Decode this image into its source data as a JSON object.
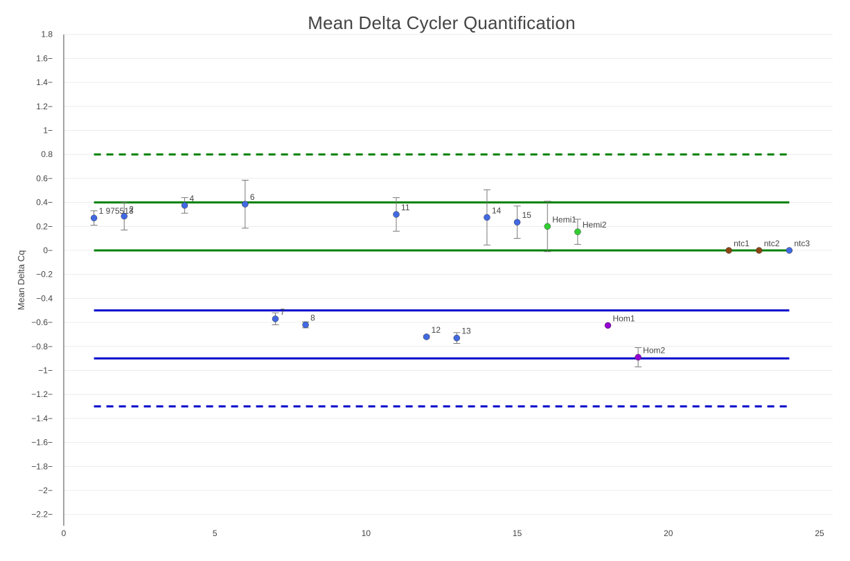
{
  "chart_data": {
    "type": "scatter",
    "title": "Mean Delta Cycler Quantification",
    "xlabel": "",
    "ylabel": "Mean Delta Cq",
    "xlim": [
      0,
      25
    ],
    "ylim": [
      -2.3,
      1.8
    ],
    "x_ticks": [
      0,
      5,
      10,
      15,
      20,
      25
    ],
    "x_tick_labels": [
      "0",
      "5",
      "10",
      "15",
      "20",
      "25"
    ],
    "y_ticks": [
      1.8,
      1.6,
      1.4,
      1.2,
      1,
      0.8,
      0.6,
      0.4,
      0.2,
      0,
      -0.2,
      -0.4,
      -0.6,
      -0.8,
      -1,
      -1.2,
      -1.4,
      -1.6,
      -1.8,
      -2,
      -2.2
    ],
    "y_tick_labels": [
      "1.8",
      "1.6−",
      "1.4−",
      "1.2−",
      "1−",
      "0.8",
      "0.6−",
      "0.4−",
      "0.2−",
      "0−",
      "−0.2",
      "−0.4",
      "−0.6−",
      "−0.8−",
      "−1−",
      "−1.2−",
      "−1.4−",
      "−1.6−",
      "−1.8−",
      "−2−",
      "−2.2−"
    ],
    "grid": true,
    "legend": false,
    "reference_lines": [
      {
        "y": 0.8,
        "color": "#008000",
        "style": "dashed"
      },
      {
        "y": 0.4,
        "color": "#008000",
        "style": "solid"
      },
      {
        "y": 0,
        "color": "#008000",
        "style": "solid"
      },
      {
        "y": -0.5,
        "color": "#0000cc",
        "style": "solid"
      },
      {
        "y": -0.9,
        "color": "#0000cc",
        "style": "solid"
      },
      {
        "y": -1.3,
        "color": "#0000cc",
        "style": "dashed"
      }
    ],
    "reference_x_range": [
      1,
      24
    ],
    "points": [
      {
        "x": 1,
        "y": 0.27,
        "err": 0.06,
        "label": "1 975513",
        "color": "#4169e1"
      },
      {
        "x": 2,
        "y": 0.285,
        "err": 0.115,
        "label": "2",
        "color": "#4169e1"
      },
      {
        "x": 4,
        "y": 0.375,
        "err": 0.065,
        "label": "4",
        "color": "#4169e1"
      },
      {
        "x": 6,
        "y": 0.385,
        "err": 0.2,
        "label": "6",
        "color": "#4169e1"
      },
      {
        "x": 7,
        "y": -0.57,
        "err": 0.05,
        "label": "7",
        "color": "#4169e1"
      },
      {
        "x": 8,
        "y": -0.62,
        "err": 0.025,
        "label": "8",
        "color": "#4169e1"
      },
      {
        "x": 11,
        "y": 0.3,
        "err": 0.14,
        "label": "11",
        "color": "#4169e1"
      },
      {
        "x": 12,
        "y": -0.72,
        "err": 0.01,
        "label": "12",
        "color": "#4169e1"
      },
      {
        "x": 13,
        "y": -0.73,
        "err": 0.045,
        "label": "13",
        "color": "#4169e1"
      },
      {
        "x": 14,
        "y": 0.275,
        "err": 0.23,
        "label": "14",
        "color": "#4169e1"
      },
      {
        "x": 15,
        "y": 0.235,
        "err": 0.135,
        "label": "15",
        "color": "#4169e1"
      },
      {
        "x": 16,
        "y": 0.2,
        "err": 0.21,
        "label": "Hemi1",
        "color": "#32cd32"
      },
      {
        "x": 17,
        "y": 0.155,
        "err": 0.105,
        "label": "Hemi2",
        "color": "#32cd32"
      },
      {
        "x": 18,
        "y": -0.625,
        "err": 0,
        "label": "Hom1",
        "color": "#9400d3"
      },
      {
        "x": 19,
        "y": -0.89,
        "err": 0.08,
        "label": "Hom2",
        "color": "#9400d3"
      },
      {
        "x": 22,
        "y": 0,
        "err": 0,
        "label": "ntc1",
        "color": "#8b4513"
      },
      {
        "x": 23,
        "y": 0,
        "err": 0,
        "label": "ntc2",
        "color": "#8b4513"
      },
      {
        "x": 24,
        "y": 0,
        "err": 0,
        "label": "ntc3",
        "color": "#4169e1"
      }
    ]
  }
}
